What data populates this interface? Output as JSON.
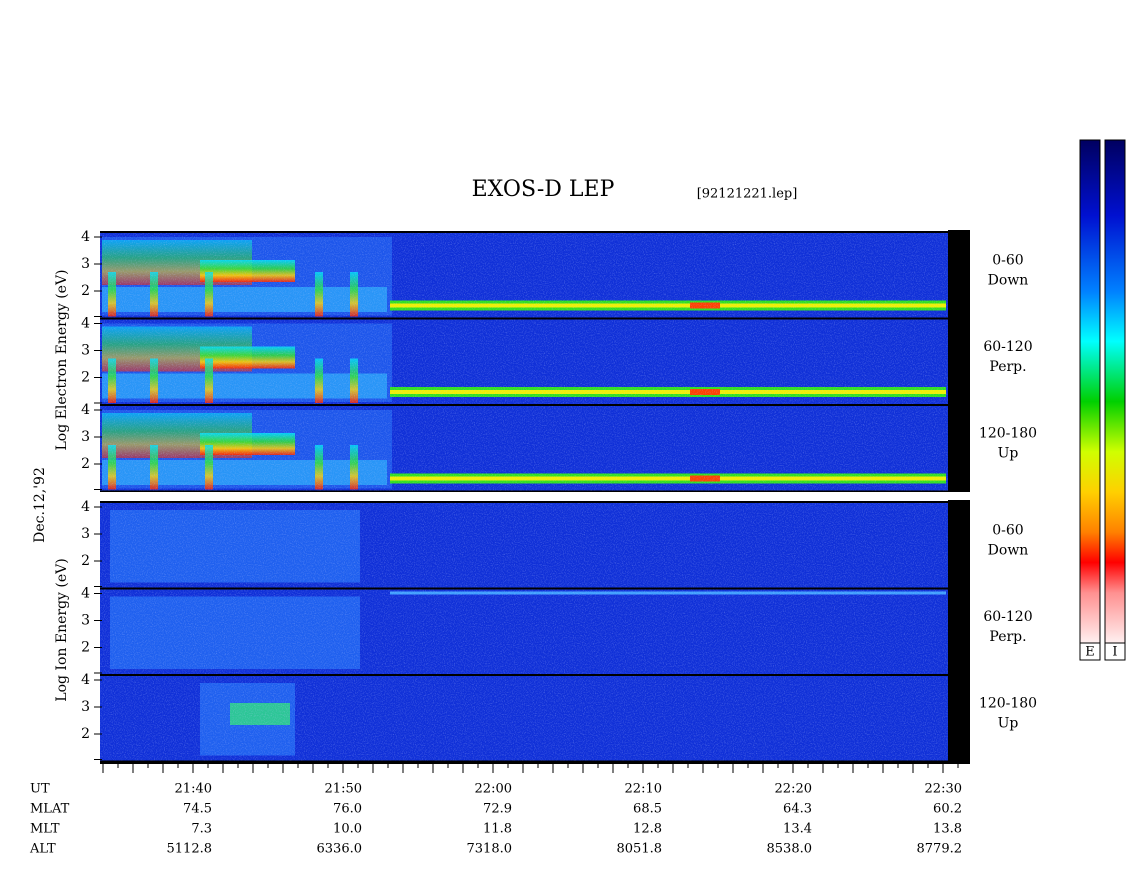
{
  "header": {
    "title": "EXOS-D LEP",
    "file": "[92121221.lep]"
  },
  "date": "Dec.12,'92",
  "electron": {
    "axis_label": "Log  Electron  Energy (eV)",
    "panels": [
      {
        "range": "0-60",
        "direction": "Down"
      },
      {
        "range": "60-120",
        "direction": "Perp."
      },
      {
        "range": "120-180",
        "direction": "Up"
      }
    ]
  },
  "ion": {
    "axis_label": "Log  Ion  Energy (eV)",
    "panels": [
      {
        "range": "0-60",
        "direction": "Down"
      },
      {
        "range": "60-120",
        "direction": "Perp."
      },
      {
        "range": "120-180",
        "direction": "Up"
      }
    ]
  },
  "energy_ticks": [
    "4",
    "3",
    "2"
  ],
  "footer": {
    "rows": [
      {
        "name": "UT",
        "values": [
          "21:40",
          "21:50",
          "22:00",
          "22:10",
          "22:20",
          "22:30"
        ]
      },
      {
        "name": "MLAT",
        "values": [
          "74.5",
          "76.0",
          "72.9",
          "68.5",
          "64.3",
          "60.2"
        ]
      },
      {
        "name": "MLT",
        "values": [
          "7.3",
          "10.0",
          "11.8",
          "12.8",
          "13.4",
          "13.8"
        ]
      },
      {
        "name": "ALT",
        "values": [
          "5112.8",
          "6336.0",
          "7318.0",
          "8051.8",
          "8538.0",
          "8779.2"
        ]
      }
    ]
  },
  "colorbars": [
    "E",
    "I"
  ]
}
